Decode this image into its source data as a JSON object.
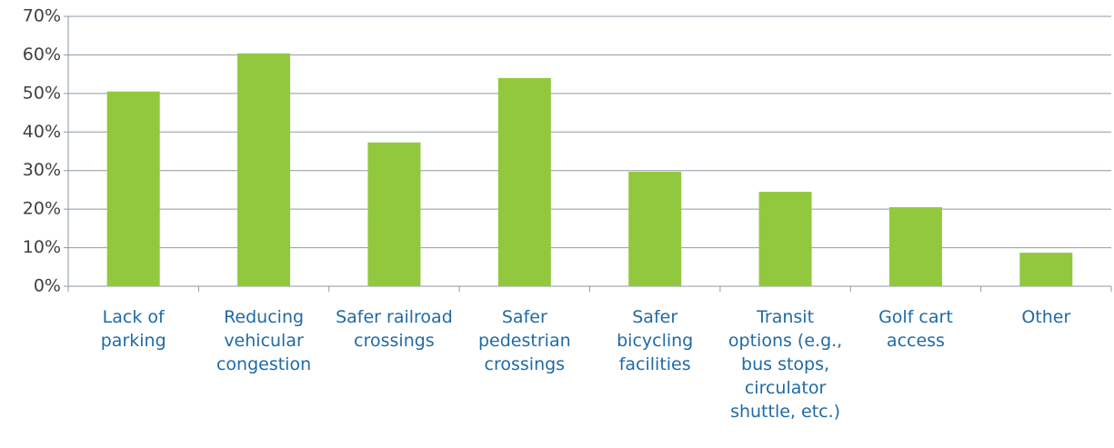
{
  "chart_data": {
    "type": "bar",
    "categories": [
      "Lack of parking",
      "Reducing vehicular congestion",
      "Safer railroad crossings",
      "Safer pedestrian crossings",
      "Safer bicycling facilities",
      "Transit options (e.g., bus stops, circulator shuttle, etc.)",
      "Golf cart access",
      "Other"
    ],
    "values": [
      50.5,
      60.4,
      37.3,
      54,
      29.7,
      24.5,
      20.5,
      8.7
    ],
    "color": "#92c83e",
    "ylim": [
      0,
      70
    ],
    "yticks": [
      {
        "value": 0,
        "label": "0%"
      },
      {
        "value": 10,
        "label": "10%"
      },
      {
        "value": 20,
        "label": "20%"
      },
      {
        "value": 30,
        "label": "30%"
      },
      {
        "value": 40,
        "label": "40%"
      },
      {
        "value": 50,
        "label": "50%"
      },
      {
        "value": 60,
        "label": "60%"
      },
      {
        "value": 70,
        "label": "70%"
      }
    ],
    "grid": true
  }
}
